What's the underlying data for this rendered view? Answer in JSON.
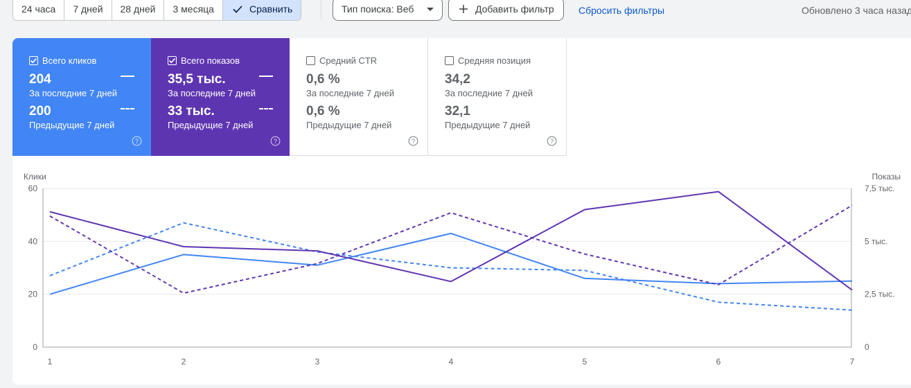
{
  "toolbar": {
    "ranges": [
      "24 часа",
      "7 дней",
      "28 дней",
      "3 месяца"
    ],
    "compare_label": "Сравнить",
    "search_type_label": "Тип поиска: Веб",
    "add_filter_label": "Добавить фильтр",
    "reset_filters_label": "Сбросить фильтры",
    "updated_text": "Обновлено 3 часа назад"
  },
  "metrics": [
    {
      "label": "Всего кликов",
      "checked": true,
      "current": "204",
      "current_period": "За последние 7 дней",
      "previous": "200",
      "previous_period": "Предыдущие 7 дней",
      "color": "#4285f4"
    },
    {
      "label": "Всего показов",
      "checked": true,
      "current": "35,5 тыс.",
      "current_period": "За последние 7 дней",
      "previous": "33 тыс.",
      "previous_period": "Предыдущие 7 дней",
      "color": "#5e35b1"
    },
    {
      "label": "Средний CTR",
      "checked": false,
      "current": "0,6 %",
      "current_period": "За последние 7 дней",
      "previous": "0,6 %",
      "previous_period": "Предыдущие 7 дней"
    },
    {
      "label": "Средняя позиция",
      "checked": false,
      "current": "34,2",
      "current_period": "За последние 7 дней",
      "previous": "32,1",
      "previous_period": "Предыдущие 7 дней"
    }
  ],
  "chart_data": {
    "type": "line",
    "x": [
      1,
      2,
      3,
      4,
      5,
      6,
      7
    ],
    "y_left_label": "Клики",
    "y_right_label": "Показы",
    "y_left_ticks": [
      "0",
      "20",
      "40",
      "60"
    ],
    "y_right_ticks": [
      "0",
      "2,5 тыс.",
      "5 тыс.",
      "7,5 тыс."
    ],
    "y_left_range": [
      0,
      60
    ],
    "y_right_range": [
      0,
      7500
    ],
    "series": [
      {
        "axis": "left",
        "style": "solid",
        "color": "#4285f4",
        "values": [
          20,
          35,
          31,
          43,
          26,
          24,
          25
        ]
      },
      {
        "axis": "left",
        "style": "dashed",
        "color": "#4285f4",
        "values": [
          27,
          47,
          36,
          30,
          29,
          17,
          14
        ]
      },
      {
        "axis": "right",
        "style": "solid",
        "color": "#5e35b1",
        "values": [
          6400,
          4750,
          4550,
          3100,
          6500,
          7350,
          2700
        ]
      },
      {
        "axis": "right",
        "style": "dashed",
        "color": "#5e35b1",
        "values": [
          6200,
          2550,
          3950,
          6350,
          4400,
          2950,
          6700
        ]
      }
    ],
    "grid": true
  }
}
